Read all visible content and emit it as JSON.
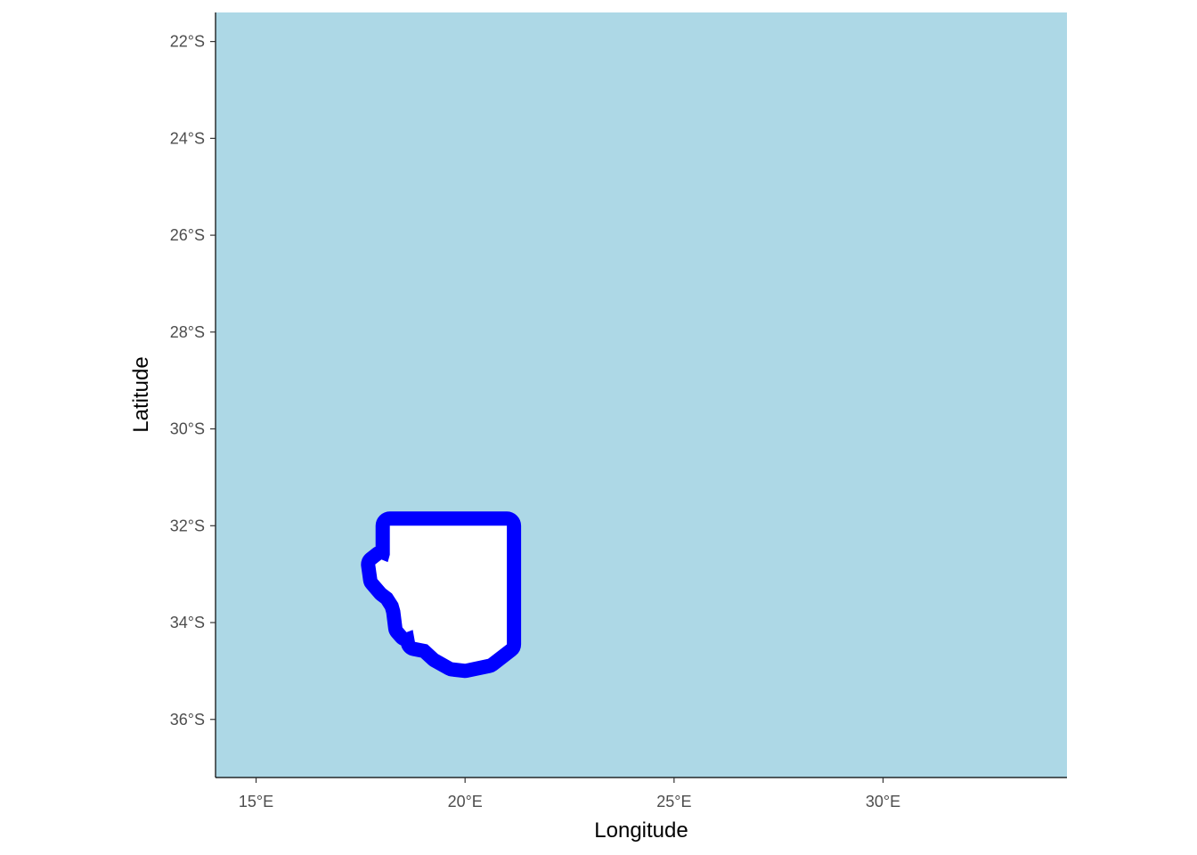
{
  "chart_data": {
    "type": "map",
    "xlabel": "Longitude",
    "ylabel": "Latitude",
    "xlim": [
      14.03,
      34.4
    ],
    "ylim": [
      -37.2,
      -21.4
    ],
    "x_ticks": [
      {
        "value": 15,
        "label": "15°E"
      },
      {
        "value": 20,
        "label": "20°E"
      },
      {
        "value": 25,
        "label": "25°E"
      },
      {
        "value": 30,
        "label": "30°E"
      }
    ],
    "y_ticks": [
      {
        "value": -22,
        "label": "22°S"
      },
      {
        "value": -24,
        "label": "24°S"
      },
      {
        "value": -26,
        "label": "26°S"
      },
      {
        "value": -28,
        "label": "28°S"
      },
      {
        "value": -30,
        "label": "30°S"
      },
      {
        "value": -32,
        "label": "32°S"
      },
      {
        "value": -34,
        "label": "34°S"
      },
      {
        "value": -36,
        "label": "36°S"
      }
    ],
    "grid": false,
    "colors": {
      "panel_background": "#ADD8E6",
      "region_fill": "#FFFFFF",
      "region_outline": "#0000FF"
    },
    "region": {
      "coordinates": [
        [
          18.2,
          -32.0
        ],
        [
          21.0,
          -32.0
        ],
        [
          21.0,
          -34.45
        ],
        [
          20.55,
          -34.75
        ],
        [
          20.0,
          -34.85
        ],
        [
          19.7,
          -34.82
        ],
        [
          19.35,
          -34.65
        ],
        [
          19.1,
          -34.45
        ],
        [
          18.8,
          -34.4
        ],
        [
          18.75,
          -34.15
        ],
        [
          18.6,
          -34.2
        ],
        [
          18.5,
          -34.1
        ],
        [
          18.45,
          -33.75
        ],
        [
          18.4,
          -33.6
        ],
        [
          18.25,
          -33.4
        ],
        [
          18.1,
          -33.3
        ],
        [
          17.9,
          -33.1
        ],
        [
          17.85,
          -32.8
        ],
        [
          18.0,
          -32.7
        ],
        [
          18.15,
          -32.75
        ],
        [
          18.2,
          -32.6
        ]
      ]
    }
  }
}
